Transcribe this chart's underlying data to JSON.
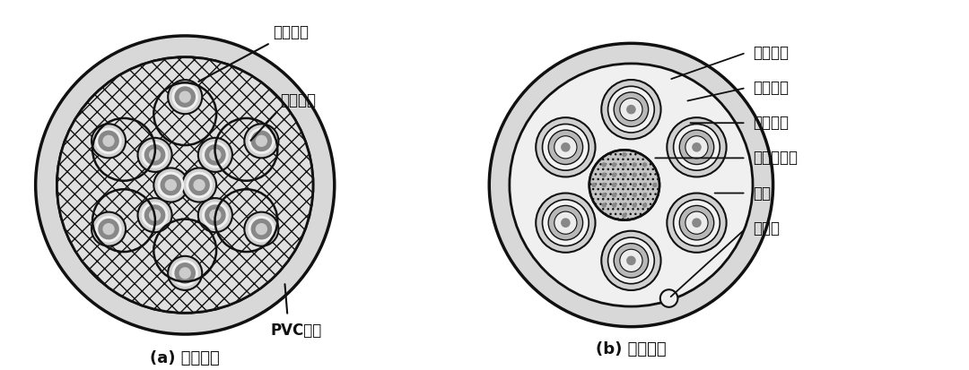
{
  "fig_width": 10.8,
  "fig_height": 4.13,
  "bg_color": "#ffffff",
  "label_a": "(a) 布线光缆",
  "label_b": "(b) 分支光缆",
  "a_labels": [
    "紧套光纤",
    "芳纶纤维",
    "PVC护套"
  ],
  "b_labels": [
    "紧套光纤",
    "芳纶纤维",
    "单芯软线",
    "中心加强件",
    "护套",
    "撕裂绳"
  ],
  "outer_pvc_fill": "#d4d4d4",
  "outer_pvc_edge": "#111111",
  "inner_hatch_fill": "#e8e8e8",
  "fiber_a_shell": "#b8b8b8",
  "fiber_a_dark": "#888888",
  "fiber_a_light": "#d0d0d0",
  "fiber_b_outer": "#c8c8c8",
  "fiber_b_white": "#f2f2f2",
  "fiber_b_gray": "#b0b0b0",
  "fiber_b_inner": "#e4e4e4",
  "fiber_b_core": "#909090",
  "center_fill": "#c0c0c0",
  "black": "#111111",
  "white": "#ffffff"
}
